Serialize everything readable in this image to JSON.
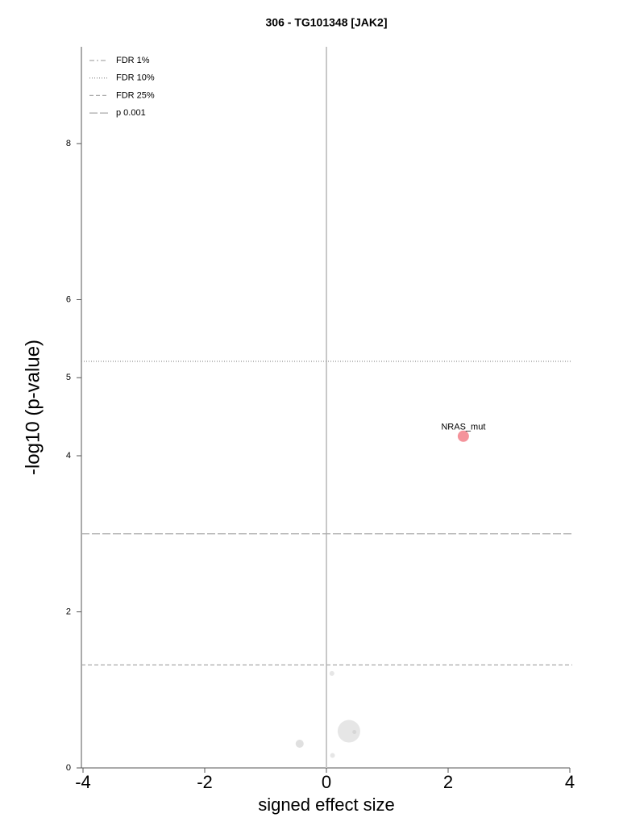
{
  "chart_data": {
    "type": "scatter",
    "title": "306 - TG101348 [JAK2]",
    "x_label": "signed effect size",
    "y_label": "-log10 (p-value)",
    "xlim": [
      -4,
      4
    ],
    "ylim": [
      0,
      9.24
    ],
    "xticks": [
      -4,
      -2,
      0,
      2,
      4
    ],
    "yticks": [
      0,
      2,
      4,
      5,
      6,
      8
    ],
    "vline": 0,
    "legend_position": "upper left",
    "reference_lines": [
      {
        "name": "FDR 1%",
        "value": null,
        "dash": "6,3,2,3",
        "color": "#aaaaaa"
      },
      {
        "name": "FDR 10%",
        "value": 5.21,
        "dash": "1,2",
        "color": "#999999"
      },
      {
        "name": "FDR 25%",
        "value": 1.32,
        "dash": "5,3",
        "color": "#aaaaaa"
      },
      {
        "name": "p 0.001",
        "value": 3.0,
        "dash": "10,3",
        "color": "#aaaaaa"
      }
    ],
    "series": [
      {
        "x": [
          2.25,
          0.09,
          0.37,
          0.46,
          -0.44,
          0.1
        ],
        "values": [
          4.25,
          1.21,
          0.47,
          0.46,
          0.31,
          0.16
        ],
        "sizes": [
          7,
          3,
          14,
          2.5,
          5,
          3
        ],
        "colors": [
          "#f4939b",
          "#e6e6e6",
          "#e6e6e6",
          "#d6d6d6",
          "#e0e0e0",
          "#e6e6e6"
        ],
        "point_labels": [
          "NRAS_mut",
          null,
          null,
          null,
          null,
          null
        ]
      }
    ]
  }
}
